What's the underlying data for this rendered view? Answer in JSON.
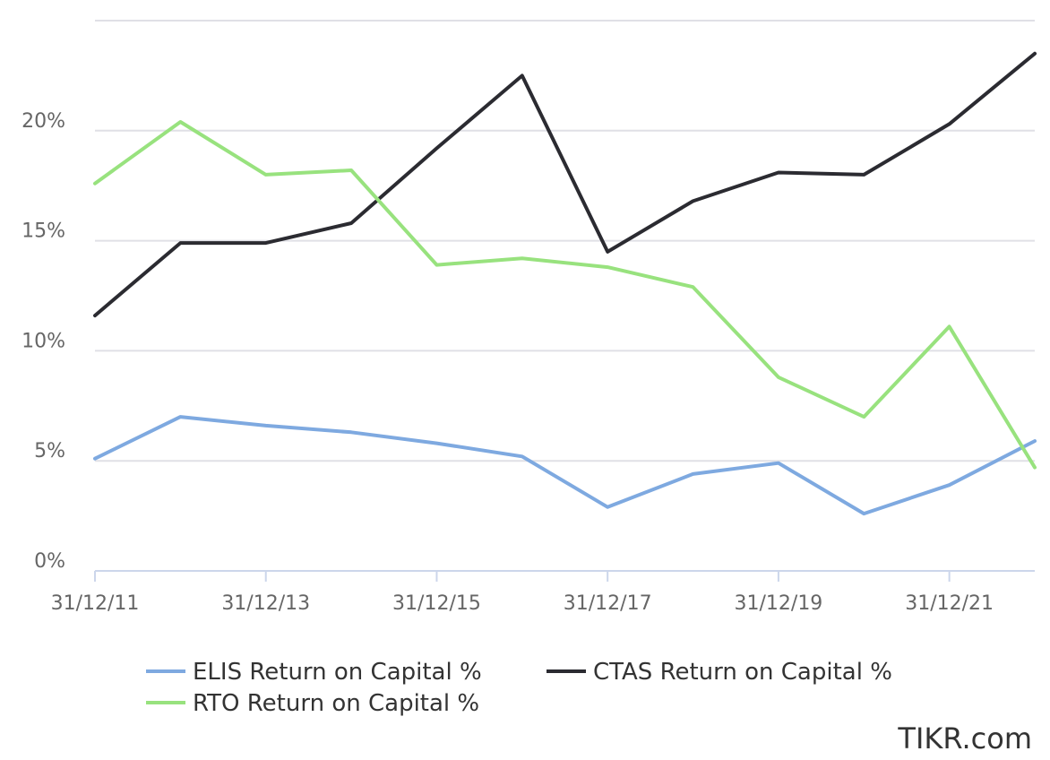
{
  "chart_data": {
    "type": "line",
    "x_tick_labels": [
      "31/12/11",
      "31/12/13",
      "31/12/15",
      "31/12/17",
      "31/12/19",
      "31/12/21"
    ],
    "x_tick_years": [
      2011,
      2013,
      2015,
      2017,
      2019,
      2021
    ],
    "y_tick_labels": [
      "0%",
      "5%",
      "10%",
      "15%",
      "20%"
    ],
    "y_tick_values": [
      0,
      5,
      10,
      15,
      20
    ],
    "xlim": [
      2011,
      2022
    ],
    "ylim": [
      0,
      25
    ],
    "grid": true,
    "legend_position": "bottom",
    "x": [
      2011,
      2012,
      2013,
      2014,
      2015,
      2016,
      2017,
      2018,
      2019,
      2020,
      2021,
      2022
    ],
    "series": [
      {
        "name": "ELIS Return on Capital %",
        "color": "#7ea9e0",
        "values": [
          5.1,
          7.0,
          6.6,
          6.3,
          5.8,
          5.2,
          2.9,
          4.4,
          4.9,
          2.6,
          3.9,
          5.9
        ]
      },
      {
        "name": "CTAS Return on Capital %",
        "color": "#2b2b31",
        "values": [
          11.6,
          14.9,
          14.9,
          15.8,
          19.2,
          22.5,
          14.5,
          16.8,
          18.1,
          18.0,
          20.3,
          23.5
        ]
      },
      {
        "name": "RTO Return on Capital %",
        "color": "#98e27e",
        "values": [
          17.6,
          20.4,
          18.0,
          18.2,
          13.9,
          14.2,
          13.8,
          12.9,
          8.8,
          7.0,
          11.1,
          4.7
        ]
      }
    ]
  },
  "watermark": "TIKR.com"
}
